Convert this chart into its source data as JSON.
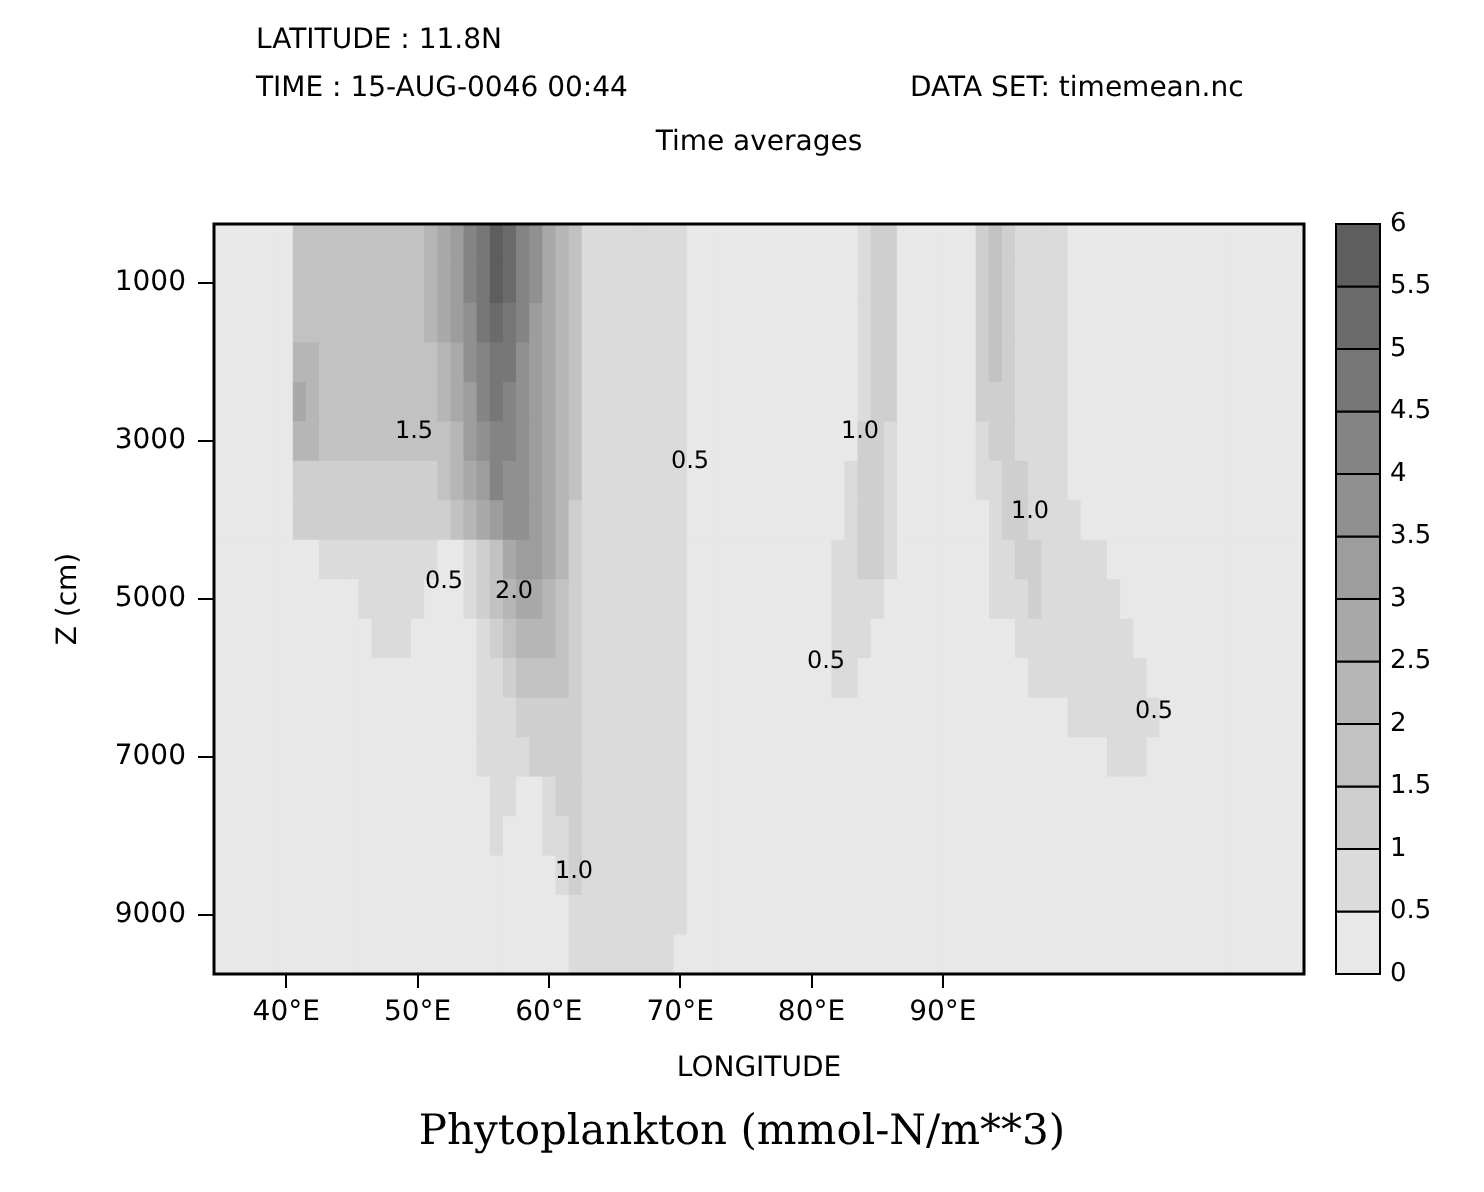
{
  "chart_data": {
    "type": "heatmap",
    "title": "Phytoplankton (mmol-N/m**3)",
    "subtitle": "Time averages",
    "xlabel": "LONGITUDE",
    "ylabel": "Z (cm)",
    "annotations": [
      "LATITUDE : 11.8N",
      "TIME : 15-AUG-0046 00:44",
      "DATA SET: timemean.nc",
      "1.5",
      "0.5",
      "0.5",
      "2.0",
      "1.0",
      "1.0",
      "0.5",
      "1.0",
      "0.5"
    ],
    "categories": [
      null,
      null,
      null,
      null,
      null,
      "40°E",
      null,
      null,
      null,
      null,
      null,
      null,
      null,
      null,
      null,
      "50°E",
      null,
      null,
      null,
      null,
      null,
      null,
      null,
      null,
      null,
      "60°E",
      null,
      null,
      null,
      null,
      null,
      null,
      null,
      null,
      null,
      "70°E",
      null,
      null,
      null,
      null,
      null,
      null,
      null,
      null,
      null,
      "80°E",
      null,
      null,
      null,
      null,
      null,
      null,
      null,
      null,
      null,
      "90°E",
      null,
      null,
      null,
      null,
      null,
      null,
      null,
      null,
      null,
      null,
      null,
      null,
      null,
      null,
      null,
      null,
      null,
      null,
      null,
      null,
      null,
      null,
      null,
      null,
      null,
      null,
      null
    ],
    "y_categories": [
      null,
      "1000",
      null,
      null,
      null,
      "3000",
      null,
      null,
      null,
      "5000",
      null,
      null,
      null,
      "7000",
      null,
      null,
      null,
      "9000",
      null
    ],
    "clim": [
      0,
      6
    ],
    "cticks": [
      0,
      0.5,
      1,
      1.5,
      2,
      2.5,
      3,
      3.5,
      4,
      4.5,
      5,
      5.5,
      6
    ],
    "cells": [
      [
        0.25,
        0.25,
        0.25,
        0.25,
        0.25,
        0.25,
        1.75,
        1.75,
        1.75,
        1.75,
        1.75,
        1.75,
        1.75,
        1.75,
        1.75,
        1.75,
        2.25,
        2.75,
        3.25,
        4.25,
        4.75,
        5.75,
        5.25,
        4.25,
        3.75,
        2.75,
        2.25,
        1.75,
        0.75,
        0.75,
        0.75,
        0.75,
        0.75,
        0.75,
        0.75,
        0.75,
        0.25,
        0.25,
        0.25,
        0.25,
        0.25,
        0.25,
        0.25,
        0.25,
        0.25,
        0.25,
        0.25,
        0.25,
        0.25,
        0.75,
        1.25,
        1.25,
        0.25,
        0.25,
        0.25,
        0.25,
        0.25,
        0.25,
        1.25,
        1.75,
        1.25,
        0.75,
        0.75,
        0.75,
        0.75,
        0.25,
        0.25,
        0.25,
        0.25,
        0.25,
        0.25,
        0.25,
        0.25,
        0.25,
        0.25,
        0.25,
        0.25,
        0.25,
        0.25,
        0.25,
        0.25,
        0.25,
        0.25
      ],
      [
        0.25,
        0.25,
        0.25,
        0.25,
        0.25,
        0.25,
        1.75,
        1.75,
        1.75,
        1.75,
        1.75,
        1.75,
        1.75,
        1.75,
        1.75,
        1.75,
        2.25,
        2.75,
        3.25,
        4.25,
        4.75,
        5.75,
        5.25,
        4.25,
        3.75,
        2.75,
        2.25,
        1.75,
        0.75,
        0.75,
        0.75,
        0.75,
        0.75,
        0.75,
        0.75,
        0.75,
        0.25,
        0.25,
        0.25,
        0.25,
        0.25,
        0.25,
        0.25,
        0.25,
        0.25,
        0.25,
        0.25,
        0.25,
        0.25,
        0.75,
        1.25,
        1.25,
        0.25,
        0.25,
        0.25,
        0.25,
        0.25,
        0.25,
        1.25,
        1.75,
        1.25,
        0.75,
        0.75,
        0.75,
        0.75,
        0.25,
        0.25,
        0.25,
        0.25,
        0.25,
        0.25,
        0.25,
        0.25,
        0.25,
        0.25,
        0.25,
        0.25,
        0.25,
        0.25,
        0.25,
        0.25,
        0.25,
        0.25
      ],
      [
        0.25,
        0.25,
        0.25,
        0.25,
        0.25,
        0.25,
        1.75,
        1.75,
        1.75,
        1.75,
        1.75,
        1.75,
        1.75,
        1.75,
        1.75,
        1.75,
        2.25,
        2.75,
        3.25,
        3.75,
        4.75,
        5.25,
        4.75,
        4.25,
        3.25,
        2.75,
        2.25,
        1.75,
        0.75,
        0.75,
        0.75,
        0.75,
        0.75,
        0.75,
        0.75,
        0.75,
        0.25,
        0.25,
        0.25,
        0.25,
        0.25,
        0.25,
        0.25,
        0.25,
        0.25,
        0.25,
        0.25,
        0.25,
        0.25,
        0.75,
        1.25,
        1.25,
        0.25,
        0.25,
        0.25,
        0.25,
        0.25,
        0.25,
        1.25,
        1.75,
        1.25,
        0.75,
        0.75,
        0.75,
        0.75,
        0.25,
        0.25,
        0.25,
        0.25,
        0.25,
        0.25,
        0.25,
        0.25,
        0.25,
        0.25,
        0.25,
        0.25,
        0.25,
        0.25,
        0.25,
        0.25,
        0.25,
        0.25
      ],
      [
        0.25,
        0.25,
        0.25,
        0.25,
        0.25,
        0.25,
        2.25,
        2.25,
        1.75,
        1.75,
        1.75,
        1.75,
        1.75,
        1.75,
        1.75,
        1.75,
        1.75,
        2.25,
        2.75,
        3.75,
        4.25,
        4.75,
        4.75,
        3.75,
        3.25,
        2.75,
        2.25,
        1.75,
        0.75,
        0.75,
        0.75,
        0.75,
        0.75,
        0.75,
        0.75,
        0.75,
        0.25,
        0.25,
        0.25,
        0.25,
        0.25,
        0.25,
        0.25,
        0.25,
        0.25,
        0.25,
        0.25,
        0.25,
        0.25,
        0.75,
        1.25,
        1.25,
        0.25,
        0.25,
        0.25,
        0.25,
        0.25,
        0.25,
        1.25,
        1.75,
        1.25,
        0.75,
        0.75,
        0.75,
        0.75,
        0.25,
        0.25,
        0.25,
        0.25,
        0.25,
        0.25,
        0.25,
        0.25,
        0.25,
        0.25,
        0.25,
        0.25,
        0.25,
        0.25,
        0.25,
        0.25,
        0.25,
        0.25
      ],
      [
        0.25,
        0.25,
        0.25,
        0.25,
        0.25,
        0.25,
        2.75,
        2.25,
        1.75,
        1.75,
        1.75,
        1.75,
        1.75,
        1.75,
        1.75,
        1.75,
        1.75,
        2.25,
        2.75,
        3.25,
        4.25,
        4.75,
        4.25,
        3.75,
        3.25,
        2.75,
        2.25,
        1.75,
        0.75,
        0.75,
        0.75,
        0.75,
        0.75,
        0.75,
        0.75,
        0.75,
        0.25,
        0.25,
        0.25,
        0.25,
        0.25,
        0.25,
        0.25,
        0.25,
        0.25,
        0.25,
        0.25,
        0.25,
        0.25,
        0.75,
        1.25,
        1.25,
        0.25,
        0.25,
        0.25,
        0.25,
        0.25,
        0.25,
        1.25,
        1.25,
        1.25,
        0.75,
        0.75,
        0.75,
        0.75,
        0.25,
        0.25,
        0.25,
        0.25,
        0.25,
        0.25,
        0.25,
        0.25,
        0.25,
        0.25,
        0.25,
        0.25,
        0.25,
        0.25,
        0.25,
        0.25,
        0.25,
        0.25
      ],
      [
        0.25,
        0.25,
        0.25,
        0.25,
        0.25,
        0.25,
        2.25,
        2.25,
        1.75,
        1.75,
        1.75,
        1.75,
        1.75,
        1.75,
        1.75,
        1.75,
        1.75,
        1.75,
        2.25,
        3.25,
        3.75,
        4.25,
        4.25,
        3.75,
        3.25,
        2.75,
        2.25,
        1.75,
        0.75,
        0.75,
        0.75,
        0.75,
        0.75,
        0.75,
        0.75,
        0.75,
        0.25,
        0.25,
        0.25,
        0.25,
        0.25,
        0.25,
        0.25,
        0.25,
        0.25,
        0.25,
        0.25,
        0.25,
        0.25,
        1.25,
        1.25,
        0.75,
        0.25,
        0.25,
        0.25,
        0.25,
        0.25,
        0.25,
        0.75,
        1.25,
        1.25,
        0.75,
        0.75,
        0.75,
        0.75,
        0.25,
        0.25,
        0.25,
        0.25,
        0.25,
        0.25,
        0.25,
        0.25,
        0.25,
        0.25,
        0.25,
        0.25,
        0.25,
        0.25,
        0.25,
        0.25,
        0.25,
        0.25
      ],
      [
        0.25,
        0.25,
        0.25,
        0.25,
        0.25,
        0.25,
        1.25,
        1.25,
        1.25,
        1.25,
        1.25,
        1.25,
        1.25,
        1.25,
        1.25,
        1.25,
        1.25,
        1.75,
        2.25,
        2.75,
        3.25,
        4.25,
        3.75,
        3.75,
        3.25,
        2.75,
        2.25,
        1.75,
        0.75,
        0.75,
        0.75,
        0.75,
        0.75,
        0.75,
        0.75,
        0.75,
        0.25,
        0.25,
        0.25,
        0.25,
        0.25,
        0.25,
        0.25,
        0.25,
        0.25,
        0.25,
        0.25,
        0.25,
        0.75,
        1.25,
        1.25,
        0.75,
        0.25,
        0.25,
        0.25,
        0.25,
        0.25,
        0.25,
        0.75,
        0.75,
        1.25,
        1.25,
        0.75,
        0.75,
        0.75,
        0.25,
        0.25,
        0.25,
        0.25,
        0.25,
        0.25,
        0.25,
        0.25,
        0.25,
        0.25,
        0.25,
        0.25,
        0.25,
        0.25,
        0.25,
        0.25,
        0.25,
        0.25
      ],
      [
        0.25,
        0.25,
        0.25,
        0.25,
        0.25,
        0.25,
        1.25,
        1.25,
        1.25,
        1.25,
        1.25,
        1.25,
        1.25,
        1.25,
        1.25,
        1.25,
        1.25,
        1.25,
        1.75,
        2.25,
        2.75,
        3.25,
        3.75,
        3.75,
        3.25,
        2.75,
        2.25,
        1.25,
        0.75,
        0.75,
        0.75,
        0.75,
        0.75,
        0.75,
        0.75,
        0.75,
        0.25,
        0.25,
        0.25,
        0.25,
        0.25,
        0.25,
        0.25,
        0.25,
        0.25,
        0.25,
        0.25,
        0.25,
        0.75,
        1.25,
        1.25,
        0.75,
        0.25,
        0.25,
        0.25,
        0.25,
        0.25,
        0.25,
        0.25,
        0.75,
        1.25,
        1.25,
        0.75,
        0.75,
        0.75,
        0.75,
        0.25,
        0.25,
        0.25,
        0.25,
        0.25,
        0.25,
        0.25,
        0.25,
        0.25,
        0.25,
        0.25,
        0.25,
        0.25,
        0.25,
        0.25,
        0.25,
        0.25
      ],
      [
        0.25,
        0.25,
        0.25,
        0.25,
        0.25,
        0.25,
        0.25,
        0.25,
        0.75,
        0.75,
        0.75,
        0.75,
        0.75,
        0.75,
        0.75,
        0.75,
        0.75,
        0.25,
        0.25,
        0.75,
        1.25,
        1.75,
        2.75,
        3.25,
        3.25,
        2.75,
        2.25,
        1.25,
        0.75,
        0.75,
        0.75,
        0.75,
        0.75,
        0.75,
        0.75,
        0.75,
        0.25,
        0.25,
        0.25,
        0.25,
        0.25,
        0.25,
        0.25,
        0.25,
        0.25,
        0.25,
        0.25,
        0.75,
        0.75,
        1.25,
        1.25,
        0.75,
        0.25,
        0.25,
        0.25,
        0.25,
        0.25,
        0.25,
        0.25,
        0.75,
        0.75,
        1.25,
        1.25,
        0.75,
        0.75,
        0.75,
        0.75,
        0.75,
        0.25,
        0.25,
        0.25,
        0.25,
        0.25,
        0.25,
        0.25,
        0.25,
        0.25,
        0.25,
        0.25,
        0.25,
        0.25,
        0.25,
        0.25
      ],
      [
        0.25,
        0.25,
        0.25,
        0.25,
        0.25,
        0.25,
        0.25,
        0.25,
        0.25,
        0.25,
        0.25,
        0.75,
        0.75,
        0.75,
        0.75,
        0.75,
        0.25,
        0.25,
        0.25,
        0.75,
        1.25,
        1.75,
        2.25,
        2.75,
        2.75,
        2.25,
        1.75,
        1.25,
        0.75,
        0.75,
        0.75,
        0.75,
        0.75,
        0.75,
        0.75,
        0.75,
        0.25,
        0.25,
        0.25,
        0.25,
        0.25,
        0.25,
        0.25,
        0.25,
        0.25,
        0.25,
        0.25,
        0.75,
        0.75,
        0.75,
        0.75,
        0.25,
        0.25,
        0.25,
        0.25,
        0.25,
        0.25,
        0.25,
        0.25,
        0.75,
        0.75,
        0.75,
        1.25,
        0.75,
        0.75,
        0.75,
        0.75,
        0.75,
        0.75,
        0.25,
        0.25,
        0.25,
        0.25,
        0.25,
        0.25,
        0.25,
        0.25,
        0.25,
        0.25,
        0.25,
        0.25,
        0.25,
        0.25
      ],
      [
        0.25,
        0.25,
        0.25,
        0.25,
        0.25,
        0.25,
        0.25,
        0.25,
        0.25,
        0.25,
        0.25,
        0.25,
        0.75,
        0.75,
        0.75,
        0.25,
        0.25,
        0.25,
        0.25,
        0.25,
        0.75,
        1.25,
        1.75,
        2.25,
        2.25,
        2.25,
        1.75,
        1.25,
        0.75,
        0.75,
        0.75,
        0.75,
        0.75,
        0.75,
        0.75,
        0.75,
        0.25,
        0.25,
        0.25,
        0.25,
        0.25,
        0.25,
        0.25,
        0.25,
        0.25,
        0.25,
        0.25,
        0.75,
        0.75,
        0.75,
        0.25,
        0.25,
        0.25,
        0.25,
        0.25,
        0.25,
        0.25,
        0.25,
        0.25,
        0.25,
        0.25,
        0.75,
        0.75,
        0.75,
        0.75,
        0.75,
        0.75,
        0.75,
        0.75,
        0.75,
        0.25,
        0.25,
        0.25,
        0.25,
        0.25,
        0.25,
        0.25,
        0.25,
        0.25,
        0.25,
        0.25,
        0.25,
        0.25
      ],
      [
        0.25,
        0.25,
        0.25,
        0.25,
        0.25,
        0.25,
        0.25,
        0.25,
        0.25,
        0.25,
        0.25,
        0.25,
        0.25,
        0.25,
        0.25,
        0.25,
        0.25,
        0.25,
        0.25,
        0.25,
        0.75,
        0.75,
        1.25,
        1.75,
        1.75,
        1.75,
        1.75,
        1.25,
        0.75,
        0.75,
        0.75,
        0.75,
        0.75,
        0.75,
        0.75,
        0.75,
        0.25,
        0.25,
        0.25,
        0.25,
        0.25,
        0.25,
        0.25,
        0.25,
        0.25,
        0.25,
        0.25,
        0.75,
        0.75,
        0.25,
        0.25,
        0.25,
        0.25,
        0.25,
        0.25,
        0.25,
        0.25,
        0.25,
        0.25,
        0.25,
        0.25,
        0.25,
        0.75,
        0.75,
        0.75,
        0.75,
        0.75,
        0.75,
        0.75,
        0.75,
        0.75,
        0.25,
        0.25,
        0.25,
        0.25,
        0.25,
        0.25,
        0.25,
        0.25,
        0.25,
        0.25,
        0.25,
        0.25
      ],
      [
        0.25,
        0.25,
        0.25,
        0.25,
        0.25,
        0.25,
        0.25,
        0.25,
        0.25,
        0.25,
        0.25,
        0.25,
        0.25,
        0.25,
        0.25,
        0.25,
        0.25,
        0.25,
        0.25,
        0.25,
        0.75,
        0.75,
        0.75,
        1.25,
        1.25,
        1.25,
        1.25,
        1.25,
        0.75,
        0.75,
        0.75,
        0.75,
        0.75,
        0.75,
        0.75,
        0.75,
        0.25,
        0.25,
        0.25,
        0.25,
        0.25,
        0.25,
        0.25,
        0.25,
        0.25,
        0.25,
        0.25,
        0.25,
        0.25,
        0.25,
        0.25,
        0.25,
        0.25,
        0.25,
        0.25,
        0.25,
        0.25,
        0.25,
        0.25,
        0.25,
        0.25,
        0.25,
        0.25,
        0.25,
        0.25,
        0.75,
        0.75,
        0.75,
        0.75,
        0.75,
        0.75,
        0.75,
        0.25,
        0.25,
        0.25,
        0.25,
        0.25,
        0.25,
        0.25,
        0.25,
        0.25,
        0.25,
        0.25
      ],
      [
        0.25,
        0.25,
        0.25,
        0.25,
        0.25,
        0.25,
        0.25,
        0.25,
        0.25,
        0.25,
        0.25,
        0.25,
        0.25,
        0.25,
        0.25,
        0.25,
        0.25,
        0.25,
        0.25,
        0.25,
        0.75,
        0.75,
        0.75,
        0.75,
        1.25,
        1.25,
        1.25,
        1.25,
        0.75,
        0.75,
        0.75,
        0.75,
        0.75,
        0.75,
        0.75,
        0.75,
        0.25,
        0.25,
        0.25,
        0.25,
        0.25,
        0.25,
        0.25,
        0.25,
        0.25,
        0.25,
        0.25,
        0.25,
        0.25,
        0.25,
        0.25,
        0.25,
        0.25,
        0.25,
        0.25,
        0.25,
        0.25,
        0.25,
        0.25,
        0.25,
        0.25,
        0.25,
        0.25,
        0.25,
        0.25,
        0.25,
        0.25,
        0.25,
        0.75,
        0.75,
        0.75,
        0.25,
        0.25,
        0.25,
        0.25,
        0.25,
        0.25,
        0.25,
        0.25,
        0.25,
        0.25,
        0.25,
        0.25
      ],
      [
        0.25,
        0.25,
        0.25,
        0.25,
        0.25,
        0.25,
        0.25,
        0.25,
        0.25,
        0.25,
        0.25,
        0.25,
        0.25,
        0.25,
        0.25,
        0.25,
        0.25,
        0.25,
        0.25,
        0.25,
        0.25,
        0.75,
        0.75,
        0.25,
        0.25,
        0.75,
        1.25,
        1.25,
        0.75,
        0.75,
        0.75,
        0.75,
        0.75,
        0.75,
        0.75,
        0.75,
        0.25,
        0.25,
        0.25,
        0.25,
        0.25,
        0.25,
        0.25,
        0.25,
        0.25,
        0.25,
        0.25,
        0.25,
        0.25,
        0.25,
        0.25,
        0.25,
        0.25,
        0.25,
        0.25,
        0.25,
        0.25,
        0.25,
        0.25,
        0.25,
        0.25,
        0.25,
        0.25,
        0.25,
        0.25,
        0.25,
        0.25,
        0.25,
        0.25,
        0.25,
        0.25,
        0.25,
        0.25,
        0.25,
        0.25,
        0.25,
        0.25,
        0.25,
        0.25,
        0.25,
        0.25,
        0.25,
        0.25
      ],
      [
        0.25,
        0.25,
        0.25,
        0.25,
        0.25,
        0.25,
        0.25,
        0.25,
        0.25,
        0.25,
        0.25,
        0.25,
        0.25,
        0.25,
        0.25,
        0.25,
        0.25,
        0.25,
        0.25,
        0.25,
        0.25,
        0.75,
        0.25,
        0.25,
        0.25,
        0.75,
        0.75,
        1.25,
        0.75,
        0.75,
        0.75,
        0.75,
        0.75,
        0.75,
        0.75,
        0.75,
        0.25,
        0.25,
        0.25,
        0.25,
        0.25,
        0.25,
        0.25,
        0.25,
        0.25,
        0.25,
        0.25,
        0.25,
        0.25,
        0.25,
        0.25,
        0.25,
        0.25,
        0.25,
        0.25,
        0.25,
        0.25,
        0.25,
        0.25,
        0.25,
        0.25,
        0.25,
        0.25,
        0.25,
        0.25,
        0.25,
        0.25,
        0.25,
        0.25,
        0.25,
        0.25,
        0.25,
        0.25,
        0.25,
        0.25,
        0.25,
        0.25,
        0.25,
        0.25,
        0.25,
        0.25,
        0.25,
        0.25
      ],
      [
        0.25,
        0.25,
        0.25,
        0.25,
        0.25,
        0.25,
        0.25,
        0.25,
        0.25,
        0.25,
        0.25,
        0.25,
        0.25,
        0.25,
        0.25,
        0.25,
        0.25,
        0.25,
        0.25,
        0.25,
        0.25,
        0.25,
        0.25,
        0.25,
        0.25,
        0.25,
        0.75,
        1.25,
        0.75,
        0.75,
        0.75,
        0.75,
        0.75,
        0.75,
        0.75,
        0.75,
        0.25,
        0.25,
        0.25,
        0.25,
        0.25,
        0.25,
        0.25,
        0.25,
        0.25,
        0.25,
        0.25,
        0.25,
        0.25,
        0.25,
        0.25,
        0.25,
        0.25,
        0.25,
        0.25,
        0.25,
        0.25,
        0.25,
        0.25,
        0.25,
        0.25,
        0.25,
        0.25,
        0.25,
        0.25,
        0.25,
        0.25,
        0.25,
        0.25,
        0.25,
        0.25,
        0.25,
        0.25,
        0.25,
        0.25,
        0.25,
        0.25,
        0.25,
        0.25,
        0.25,
        0.25,
        0.25,
        0.25
      ],
      [
        0.25,
        0.25,
        0.25,
        0.25,
        0.25,
        0.25,
        0.25,
        0.25,
        0.25,
        0.25,
        0.25,
        0.25,
        0.25,
        0.25,
        0.25,
        0.25,
        0.25,
        0.25,
        0.25,
        0.25,
        0.25,
        0.25,
        0.25,
        0.25,
        0.25,
        0.25,
        0.25,
        0.75,
        0.75,
        0.75,
        0.75,
        0.75,
        0.75,
        0.75,
        0.75,
        0.75,
        0.25,
        0.25,
        0.25,
        0.25,
        0.25,
        0.25,
        0.25,
        0.25,
        0.25,
        0.25,
        0.25,
        0.25,
        0.25,
        0.25,
        0.25,
        0.25,
        0.25,
        0.25,
        0.25,
        0.25,
        0.25,
        0.25,
        0.25,
        0.25,
        0.25,
        0.25,
        0.25,
        0.25,
        0.25,
        0.25,
        0.25,
        0.25,
        0.25,
        0.25,
        0.25,
        0.25,
        0.25,
        0.25,
        0.25,
        0.25,
        0.25,
        0.25,
        0.25,
        0.25,
        0.25,
        0.25,
        0.25
      ],
      [
        0.25,
        0.25,
        0.25,
        0.25,
        0.25,
        0.25,
        0.25,
        0.25,
        0.25,
        0.25,
        0.25,
        0.25,
        0.25,
        0.25,
        0.25,
        0.25,
        0.25,
        0.25,
        0.25,
        0.25,
        0.25,
        0.25,
        0.25,
        0.25,
        0.25,
        0.25,
        0.25,
        0.75,
        0.75,
        0.75,
        0.75,
        0.75,
        0.75,
        0.75,
        0.75,
        0.25,
        0.25,
        0.25,
        0.25,
        0.25,
        0.25,
        0.25,
        0.25,
        0.25,
        0.25,
        0.25,
        0.25,
        0.25,
        0.25,
        0.25,
        0.25,
        0.25,
        0.25,
        0.25,
        0.25,
        0.25,
        0.25,
        0.25,
        0.25,
        0.25,
        0.25,
        0.25,
        0.25,
        0.25,
        0.25,
        0.25,
        0.25,
        0.25,
        0.25,
        0.25,
        0.25,
        0.25,
        0.25,
        0.25,
        0.25,
        0.25,
        0.25,
        0.25,
        0.25,
        0.25,
        0.25,
        0.25,
        0.25
      ]
    ]
  }
}
